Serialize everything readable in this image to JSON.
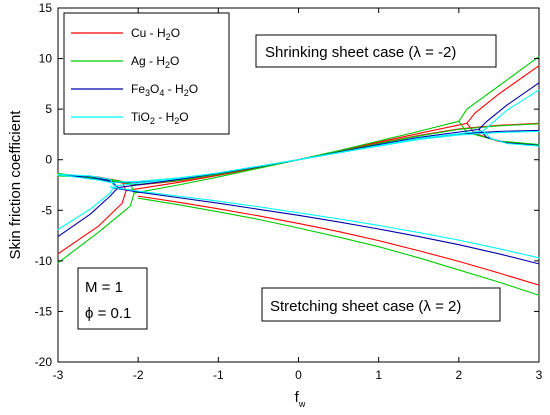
{
  "chart_data": {
    "type": "line",
    "title": "",
    "xlabel": "f_w",
    "xlabel_main": "f",
    "xlabel_sub": "w",
    "ylabel": "Skin friction coefficient",
    "xlim": [
      -3,
      3
    ],
    "ylim": [
      -20,
      15
    ],
    "xticks": [
      -3,
      -2,
      -1,
      0,
      1,
      2,
      3
    ],
    "yticks": [
      -20,
      -15,
      -10,
      -5,
      0,
      5,
      10,
      15
    ],
    "xtick_labels": [
      "-3",
      "-2",
      "-1",
      "0",
      "1",
      "2",
      "3"
    ],
    "ytick_labels": [
      "-20",
      "-15",
      "-10",
      "-5",
      "0",
      "5",
      "10",
      "15"
    ],
    "grid": false,
    "legend_position": "top-left",
    "series": [
      {
        "name": "Cu - H2O",
        "label_parts": [
          [
            "Cu - H",
            ""
          ],
          [
            "2",
            "sub"
          ],
          [
            "O",
            ""
          ]
        ],
        "color": "#ff0000",
        "branches": [
          {
            "case": "shrinking",
            "x": [
              -3,
              -2.5,
              -2.2,
              -2.15,
              -2.2,
              -2.5,
              -3
            ],
            "y": [
              -9.3,
              -6.6,
              -4.3,
              -3.05,
              -2.15,
              -1.7,
              -1.55
            ]
          },
          {
            "case": "shrinking",
            "x": [
              -2.15,
              -1.5,
              -1,
              -0.5,
              0,
              0.5,
              1,
              1.5,
              2.1
            ],
            "y": [
              -3.05,
              -2.25,
              -1.55,
              -0.8,
              0,
              0.85,
              1.75,
              2.6,
              3.6
            ]
          },
          {
            "case": "shrinking",
            "x": [
              3,
              2.5,
              2.2,
              2.1,
              2.2,
              2.5,
              3
            ],
            "y": [
              9.3,
              6.5,
              4.6,
              3.6,
              2.6,
              1.8,
              1.45
            ]
          },
          {
            "case": "stretching",
            "x": [
              -3,
              -2.5,
              -2.2,
              -2,
              -1.5,
              -1,
              -0.5,
              0,
              0.5,
              1,
              1.5,
              2,
              2.5,
              3
            ],
            "y": [
              -1.4,
              -1.9,
              -2.3,
              -2.5,
              -2.1,
              -1.5,
              -0.75,
              0,
              0.8,
              1.65,
              2.4,
              3.05,
              3.4,
              3.6
            ]
          },
          {
            "case": "stretching",
            "x": [
              -2,
              -1.5,
              -1,
              -0.5,
              0,
              0.5,
              1,
              1.5,
              2,
              2.5,
              3
            ],
            "y": [
              -3.6,
              -4.2,
              -4.85,
              -5.55,
              -6.3,
              -7.1,
              -8,
              -9,
              -10.05,
              -11.2,
              -12.4
            ]
          }
        ]
      },
      {
        "name": "Ag - H2O",
        "label_parts": [
          [
            "Ag - H",
            ""
          ],
          [
            "2",
            "sub"
          ],
          [
            "O",
            ""
          ]
        ],
        "color": "#00cc00",
        "branches": [
          {
            "case": "shrinking",
            "x": [
              -3,
              -2.5,
              -2.1,
              -2.05,
              -2.1,
              -2.5,
              -3
            ],
            "y": [
              -10.2,
              -7.2,
              -4.6,
              -3.3,
              -2.3,
              -1.75,
              -1.6
            ]
          },
          {
            "case": "shrinking",
            "x": [
              -2.05,
              -1.5,
              -1,
              -0.5,
              0,
              0.5,
              1,
              1.5,
              2
            ],
            "y": [
              -3.3,
              -2.5,
              -1.7,
              -0.85,
              0,
              0.9,
              1.85,
              2.8,
              3.8
            ]
          },
          {
            "case": "shrinking",
            "x": [
              3,
              2.5,
              2.1,
              2,
              2.1,
              2.5,
              3
            ],
            "y": [
              10.2,
              7.3,
              5.0,
              3.8,
              2.7,
              1.85,
              1.5
            ]
          },
          {
            "case": "stretching",
            "x": [
              -3,
              -2.5,
              -2.2,
              -2,
              -1.5,
              -1,
              -0.5,
              0,
              0.5,
              1,
              1.5,
              2,
              2.5,
              3
            ],
            "y": [
              -1.35,
              -1.85,
              -2.25,
              -2.45,
              -2.05,
              -1.45,
              -0.72,
              0,
              0.78,
              1.6,
              2.35,
              3.0,
              3.35,
              3.55
            ]
          },
          {
            "case": "stretching",
            "x": [
              -2,
              -1.5,
              -1,
              -0.5,
              0,
              0.5,
              1,
              1.5,
              2,
              2.5,
              3
            ],
            "y": [
              -3.8,
              -4.45,
              -5.15,
              -5.9,
              -6.75,
              -7.65,
              -8.6,
              -9.7,
              -10.9,
              -12.1,
              -13.4
            ]
          }
        ]
      },
      {
        "name": "Fe3O4 - H2O",
        "label_parts": [
          [
            "Fe",
            ""
          ],
          [
            "3",
            "sub"
          ],
          [
            "O",
            ""
          ],
          [
            "4",
            "sub"
          ],
          [
            " - H",
            ""
          ],
          [
            "2",
            "sub"
          ],
          [
            "O",
            ""
          ]
        ],
        "color": "#0000aa",
        "branches": [
          {
            "case": "shrinking",
            "x": [
              -3,
              -2.6,
              -2.35,
              -2.25,
              -2.35,
              -2.6,
              -3
            ],
            "y": [
              -7.6,
              -5.4,
              -3.6,
              -2.75,
              -2.05,
              -1.65,
              -1.5
            ]
          },
          {
            "case": "shrinking",
            "x": [
              -2.25,
              -1.5,
              -1,
              -0.5,
              0,
              0.5,
              1,
              1.5,
              2.25
            ],
            "y": [
              -2.75,
              -1.95,
              -1.35,
              -0.7,
              0,
              0.75,
              1.5,
              2.2,
              3.0
            ]
          },
          {
            "case": "shrinking",
            "x": [
              3,
              2.6,
              2.35,
              2.25,
              2.35,
              2.6,
              3
            ],
            "y": [
              7.6,
              5.4,
              3.8,
              3.0,
              2.2,
              1.65,
              1.4
            ]
          },
          {
            "case": "stretching",
            "x": [
              -3,
              -2.5,
              -2.3,
              -2,
              -1.5,
              -1,
              -0.5,
              0,
              0.5,
              1,
              1.5,
              2,
              2.5,
              3
            ],
            "y": [
              -1.45,
              -1.95,
              -2.25,
              -2.2,
              -1.85,
              -1.35,
              -0.68,
              0,
              0.7,
              1.4,
              2.05,
              2.55,
              2.8,
              2.9
            ]
          },
          {
            "case": "stretching",
            "x": [
              -2.3,
              -2,
              -1.5,
              -1,
              -0.5,
              0,
              0.5,
              1,
              1.5,
              2,
              2.5,
              3
            ],
            "y": [
              -2.8,
              -3.2,
              -3.75,
              -4.3,
              -4.9,
              -5.5,
              -6.15,
              -6.85,
              -7.6,
              -8.4,
              -9.3,
              -10.3
            ]
          }
        ]
      },
      {
        "name": "TiO2 - H2O",
        "label_parts": [
          [
            "TiO",
            ""
          ],
          [
            "2",
            "sub"
          ],
          [
            " - H",
            ""
          ],
          [
            "2",
            "sub"
          ],
          [
            "O",
            ""
          ]
        ],
        "color": "#00ffff",
        "branches": [
          {
            "case": "shrinking",
            "x": [
              -3,
              -2.6,
              -2.35,
              -2.3,
              -2.35,
              -2.6,
              -3
            ],
            "y": [
              -6.9,
              -4.9,
              -3.3,
              -2.6,
              -1.95,
              -1.6,
              -1.45
            ]
          },
          {
            "case": "shrinking",
            "x": [
              -2.3,
              -1.5,
              -1,
              -0.5,
              0,
              0.5,
              1,
              1.5,
              2.3
            ],
            "y": [
              -2.6,
              -1.85,
              -1.3,
              -0.65,
              0,
              0.7,
              1.4,
              2.1,
              2.85
            ]
          },
          {
            "case": "shrinking",
            "x": [
              3,
              2.6,
              2.4,
              2.3,
              2.4,
              2.6,
              3
            ],
            "y": [
              6.9,
              4.9,
              3.5,
              2.85,
              2.1,
              1.6,
              1.35
            ]
          },
          {
            "case": "stretching",
            "x": [
              -3,
              -2.5,
              -2.35,
              -2,
              -1.5,
              -1,
              -0.5,
              0,
              0.5,
              1,
              1.5,
              2,
              2.5,
              3
            ],
            "y": [
              -1.5,
              -2.0,
              -2.25,
              -2.15,
              -1.8,
              -1.3,
              -0.65,
              0,
              0.68,
              1.35,
              2.0,
              2.45,
              2.7,
              2.8
            ]
          },
          {
            "case": "stretching",
            "x": [
              -2.35,
              -2,
              -1.5,
              -1,
              -0.5,
              0,
              0.5,
              1,
              1.5,
              2,
              2.5,
              3
            ],
            "y": [
              -2.7,
              -3.1,
              -3.6,
              -4.1,
              -4.65,
              -5.25,
              -5.85,
              -6.5,
              -7.2,
              -7.95,
              -8.8,
              -9.7
            ]
          }
        ]
      }
    ],
    "annotations": {
      "shrinking": "Shrinking sheet case (λ = -2)",
      "stretching": "Stretching sheet case (λ = 2)",
      "param_m": "M = 1",
      "param_phi": "ϕ = 0.1"
    }
  }
}
